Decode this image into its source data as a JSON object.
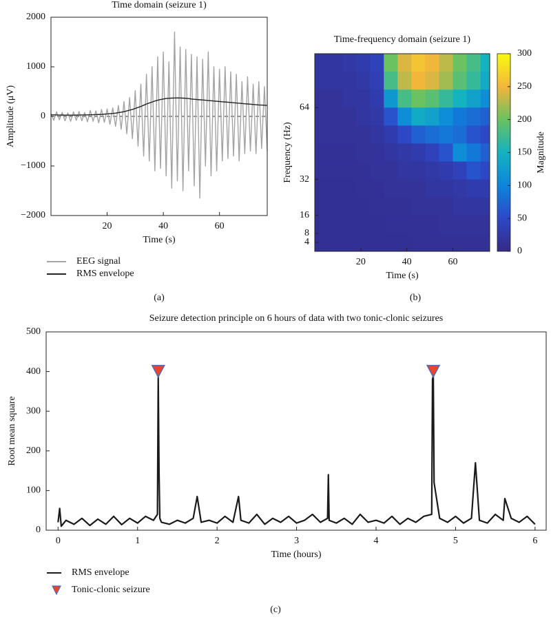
{
  "chart_data": [
    {
      "type": "line",
      "title": "Time domain (seizure 1)",
      "xlabel": "Time (s)",
      "ylabel": "Amplitude (μV)",
      "panel_label": "(a)",
      "xlim": [
        0,
        77
      ],
      "ylim": [
        -2000,
        2000
      ],
      "xticks": [
        20,
        40,
        60
      ],
      "yticks": [
        {
          "value": -2000,
          "label": "−2000"
        },
        {
          "value": -1000,
          "label": "−1000"
        },
        0,
        1000,
        2000
      ],
      "hline": 0,
      "grid": false,
      "legend": "bottom-left",
      "x": [
        0,
        1,
        2,
        3,
        4,
        5,
        6,
        7,
        8,
        9,
        10,
        11,
        12,
        13,
        14,
        15,
        16,
        17,
        18,
        19,
        20,
        21,
        22,
        23,
        24,
        25,
        26,
        27,
        28,
        29,
        30,
        31,
        32,
        33,
        34,
        35,
        36,
        37,
        38,
        39,
        40,
        41,
        42,
        43,
        44,
        45,
        46,
        47,
        48,
        49,
        50,
        51,
        52,
        53,
        54,
        55,
        56,
        57,
        58,
        59,
        60,
        61,
        62,
        63,
        64,
        65,
        66,
        67,
        68,
        69,
        70,
        71,
        72,
        73,
        74,
        75,
        76,
        77
      ],
      "series": [
        {
          "name": "EEG signal",
          "color": "#a3a3a3",
          "values": [
            60,
            -80,
            90,
            -70,
            80,
            -90,
            70,
            -100,
            90,
            -80,
            100,
            -90,
            80,
            -110,
            120,
            -100,
            110,
            -130,
            140,
            -120,
            150,
            -160,
            170,
            -200,
            220,
            -260,
            300,
            -350,
            380,
            -450,
            520,
            -600,
            650,
            -800,
            850,
            -900,
            1000,
            -1100,
            1200,
            -1050,
            1300,
            -1200,
            1100,
            -1450,
            1700,
            -1300,
            1400,
            -1500,
            1350,
            -1100,
            1250,
            -1400,
            1200,
            -1650,
            1150,
            -1000,
            1300,
            -1200,
            1000,
            -1100,
            950,
            -900,
            1000,
            -850,
            900,
            -800,
            850,
            -900,
            700,
            -750,
            800,
            -700,
            650,
            -750,
            700,
            -650,
            600,
            -700
          ]
        },
        {
          "name": "RMS envelope",
          "color": "#222222",
          "values": [
            30,
            30,
            28,
            27,
            26,
            25,
            25,
            25,
            25,
            26,
            27,
            28,
            29,
            30,
            32,
            34,
            36,
            38,
            40,
            45,
            50,
            55,
            60,
            65,
            75,
            85,
            95,
            110,
            125,
            140,
            160,
            180,
            200,
            225,
            250,
            270,
            290,
            310,
            325,
            340,
            350,
            360,
            365,
            368,
            370,
            372,
            370,
            368,
            365,
            360,
            350,
            345,
            340,
            335,
            330,
            325,
            320,
            315,
            310,
            305,
            300,
            295,
            290,
            285,
            280,
            275,
            270,
            265,
            260,
            255,
            250,
            245,
            240,
            235,
            230,
            228,
            225,
            222
          ]
        }
      ]
    },
    {
      "type": "heatmap",
      "title": "Time-frequency domain (seizure 1)",
      "xlabel": "Time (s)",
      "ylabel": "Frequency (Hz)",
      "colorbar_label": "Magnitude",
      "panel_label": "(b)",
      "xlim": [
        0,
        76
      ],
      "ylim": [
        0,
        88
      ],
      "xticks": [
        20,
        40,
        60
      ],
      "yticks": [
        4,
        8,
        16,
        32,
        64
      ],
      "clim": [
        0,
        300
      ],
      "colorbar_ticks": [
        0,
        50,
        100,
        150,
        200,
        250,
        300
      ],
      "colorscale": [
        [
          0,
          "#352a87"
        ],
        [
          0.17,
          "#2d49c8"
        ],
        [
          0.33,
          "#0d84dc"
        ],
        [
          0.5,
          "#13b3c0"
        ],
        [
          0.67,
          "#6cc25e"
        ],
        [
          0.83,
          "#f2b53c"
        ],
        [
          1,
          "#f9fb0e"
        ]
      ],
      "x": [
        3,
        9,
        15,
        21,
        27,
        33,
        39,
        45,
        51,
        57,
        63,
        69,
        75
      ],
      "y": [
        84,
        76,
        68,
        60,
        52,
        44,
        36,
        28,
        20,
        12,
        4
      ],
      "z": [
        [
          20,
          20,
          25,
          30,
          40,
          200,
          240,
          260,
          250,
          230,
          200,
          180,
          150
        ],
        [
          20,
          20,
          20,
          25,
          35,
          180,
          230,
          250,
          240,
          220,
          190,
          170,
          140
        ],
        [
          15,
          15,
          20,
          20,
          30,
          120,
          180,
          200,
          190,
          170,
          150,
          130,
          110
        ],
        [
          15,
          15,
          15,
          20,
          25,
          60,
          110,
          140,
          130,
          110,
          90,
          80,
          70
        ],
        [
          15,
          15,
          15,
          15,
          20,
          30,
          50,
          70,
          80,
          90,
          80,
          60,
          50
        ],
        [
          12,
          12,
          12,
          15,
          15,
          20,
          25,
          30,
          40,
          60,
          110,
          90,
          70
        ],
        [
          12,
          12,
          12,
          12,
          15,
          15,
          20,
          20,
          25,
          30,
          40,
          60,
          50
        ],
        [
          10,
          10,
          10,
          12,
          12,
          15,
          15,
          15,
          20,
          20,
          25,
          30,
          30
        ],
        [
          10,
          10,
          10,
          10,
          12,
          12,
          12,
          15,
          15,
          15,
          20,
          20,
          20
        ],
        [
          10,
          10,
          10,
          10,
          10,
          12,
          12,
          12,
          12,
          15,
          15,
          15,
          15
        ],
        [
          10,
          10,
          10,
          10,
          10,
          10,
          10,
          12,
          12,
          12,
          12,
          12,
          12
        ]
      ]
    },
    {
      "type": "line",
      "title": "Seizure detection principle on 6 hours of data with two tonic-clonic seizures",
      "xlabel": "Time (hours)",
      "ylabel": "Root mean square",
      "panel_label": "(c)",
      "xlim": [
        -0.15,
        6.14
      ],
      "ylim": [
        0,
        500
      ],
      "xticks": [
        0,
        1,
        2,
        3,
        4,
        5,
        6
      ],
      "yticks": [
        0,
        100,
        200,
        300,
        400,
        500
      ],
      "grid": false,
      "legend": "bottom-left",
      "series": [
        {
          "name": "RMS envelope",
          "color": "#1a1a1a",
          "x": [
            0,
            0.02,
            0.04,
            0.1,
            0.2,
            0.3,
            0.4,
            0.5,
            0.6,
            0.7,
            0.8,
            0.9,
            1.0,
            1.1,
            1.2,
            1.25,
            1.26,
            1.27,
            1.28,
            1.3,
            1.4,
            1.5,
            1.6,
            1.7,
            1.75,
            1.8,
            1.9,
            2.0,
            2.1,
            2.2,
            2.27,
            2.3,
            2.4,
            2.5,
            2.6,
            2.7,
            2.8,
            2.9,
            3.0,
            3.1,
            3.2,
            3.3,
            3.39,
            3.4,
            3.41,
            3.5,
            3.6,
            3.7,
            3.8,
            3.9,
            4.0,
            4.1,
            4.2,
            4.3,
            4.4,
            4.5,
            4.6,
            4.7,
            4.71,
            4.72,
            4.73,
            4.8,
            4.9,
            5.0,
            5.1,
            5.2,
            5.25,
            5.3,
            5.4,
            5.5,
            5.6,
            5.62,
            5.7,
            5.8,
            5.9,
            6.0
          ],
          "values": [
            20,
            55,
            10,
            25,
            15,
            30,
            12,
            28,
            15,
            35,
            14,
            30,
            18,
            35,
            25,
            40,
            390,
            150,
            30,
            20,
            15,
            25,
            18,
            30,
            85,
            20,
            25,
            18,
            35,
            20,
            85,
            25,
            18,
            40,
            15,
            30,
            20,
            35,
            18,
            25,
            40,
            20,
            30,
            140,
            25,
            18,
            30,
            15,
            40,
            20,
            25,
            18,
            35,
            15,
            30,
            20,
            35,
            40,
            380,
            390,
            120,
            30,
            20,
            35,
            18,
            30,
            170,
            25,
            18,
            40,
            25,
            80,
            30,
            20,
            35,
            15
          ]
        },
        {
          "name": "Tonic-clonic seizure",
          "color": "#e8452c",
          "edge_color": "#4a6fb5",
          "marker": "triangle-down",
          "x": [
            1.26,
            4.72
          ],
          "values": [
            400,
            400
          ]
        }
      ]
    }
  ]
}
